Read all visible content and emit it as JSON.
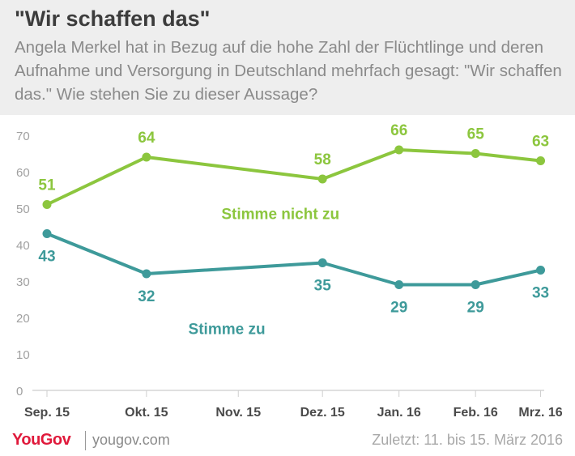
{
  "header": {
    "title": "\"Wir schaffen das\"",
    "subtitle": "Angela Merkel hat in Bezug auf die hohe Zahl der Flüchtlinge und deren Aufnahme und Versorgung in Deutschland mehrfach gesagt: \"Wir schaffen das.\" Wie stehen Sie zu dieser Aussage?"
  },
  "footer": {
    "logo": "YouGov",
    "site": "yougov.com",
    "date": "Zuletzt: 11. bis 15. März 2016"
  },
  "chart_data": {
    "type": "line",
    "title": "\"Wir schaffen das\"",
    "categories": [
      "Sep. 15",
      "Okt. 15",
      "Nov. 15",
      "Dez. 15",
      "Jan. 16",
      "Feb. 16",
      "Mrz. 16"
    ],
    "x_positions": [
      0,
      1.3,
      2.5,
      3.6,
      4.6,
      5.6,
      6.45
    ],
    "ylim": [
      0,
      70
    ],
    "yticks": [
      0,
      10,
      20,
      30,
      40,
      50,
      60,
      70
    ],
    "grid": false,
    "legend": "inline labels",
    "series": [
      {
        "name": "Stimme nicht zu",
        "color": "#8cc63e",
        "x": [
          0,
          1.3,
          3.6,
          4.6,
          5.6,
          6.45
        ],
        "values": [
          51,
          64,
          58,
          66,
          65,
          63
        ],
        "label_pos": "above"
      },
      {
        "name": "Stimme zu",
        "color": "#3e9a9a",
        "x": [
          0,
          1.3,
          3.6,
          4.6,
          5.6,
          6.45
        ],
        "values": [
          43,
          32,
          35,
          29,
          29,
          33
        ],
        "label_pos": "below"
      }
    ],
    "series_labels": [
      {
        "text": "Stimme nicht zu",
        "series": 0,
        "x": 3.05,
        "y": 47
      },
      {
        "text": "Stimme zu",
        "series": 1,
        "x": 2.35,
        "y": 15.5
      }
    ]
  }
}
